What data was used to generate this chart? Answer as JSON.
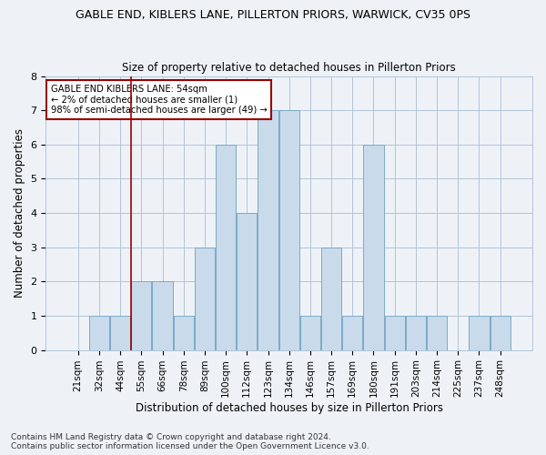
{
  "title": "GABLE END, KIBLERS LANE, PILLERTON PRIORS, WARWICK, CV35 0PS",
  "subtitle": "Size of property relative to detached houses in Pillerton Priors",
  "xlabel": "Distribution of detached houses by size in Pillerton Priors",
  "ylabel": "Number of detached properties",
  "categories": [
    "21sqm",
    "32sqm",
    "44sqm",
    "55sqm",
    "66sqm",
    "78sqm",
    "89sqm",
    "100sqm",
    "112sqm",
    "123sqm",
    "134sqm",
    "146sqm",
    "157sqm",
    "169sqm",
    "180sqm",
    "191sqm",
    "203sqm",
    "214sqm",
    "225sqm",
    "237sqm",
    "248sqm"
  ],
  "values": [
    0,
    1,
    1,
    2,
    2,
    1,
    3,
    6,
    4,
    7,
    7,
    1,
    3,
    1,
    6,
    1,
    1,
    1,
    0,
    1,
    1
  ],
  "bar_color": "#c9daea",
  "bar_edge_color": "#7aaac8",
  "vline_x_index": 2.5,
  "vline_color": "#990000",
  "annotation_text": "GABLE END KIBLERS LANE: 54sqm\n← 2% of detached houses are smaller (1)\n98% of semi-detached houses are larger (49) →",
  "annotation_box_facecolor": "#ffffff",
  "annotation_box_edgecolor": "#990000",
  "ylim": [
    0,
    8
  ],
  "yticks": [
    0,
    1,
    2,
    3,
    4,
    5,
    6,
    7,
    8
  ],
  "footer1": "Contains HM Land Registry data © Crown copyright and database right 2024.",
  "footer2": "Contains public sector information licensed under the Open Government Licence v3.0.",
  "bg_color": "#eef2f7",
  "plot_bg_color": "#eef2f7",
  "grid_color": "#b0c4d8",
  "title_fontsize": 9,
  "subtitle_fontsize": 8.5,
  "tick_fontsize": 7.5,
  "ylabel_fontsize": 8.5,
  "xlabel_fontsize": 8.5,
  "footer_fontsize": 6.5
}
